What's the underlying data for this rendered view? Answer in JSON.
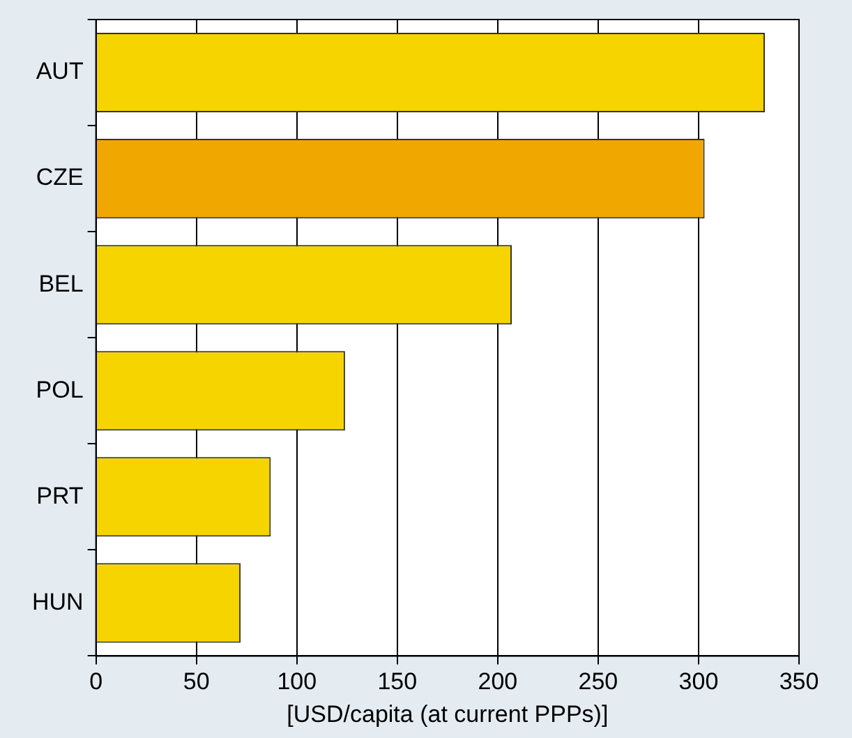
{
  "chart_data": {
    "type": "bar",
    "orientation": "horizontal",
    "xlabel": "[USD/capita (at current PPPs)]",
    "categories": [
      "AUT",
      "CZE",
      "BEL",
      "POL",
      "PRT",
      "HUN"
    ],
    "values": [
      333,
      303,
      207,
      124,
      87,
      72
    ],
    "colors": [
      "#f5d400",
      "#f0a800",
      "#f5d400",
      "#f5d400",
      "#f5d400",
      "#f5d400"
    ],
    "xlim": [
      0,
      350
    ],
    "xticks": [
      0,
      50,
      100,
      150,
      200,
      250,
      300,
      350
    ],
    "grid": "x",
    "legend": false
  }
}
